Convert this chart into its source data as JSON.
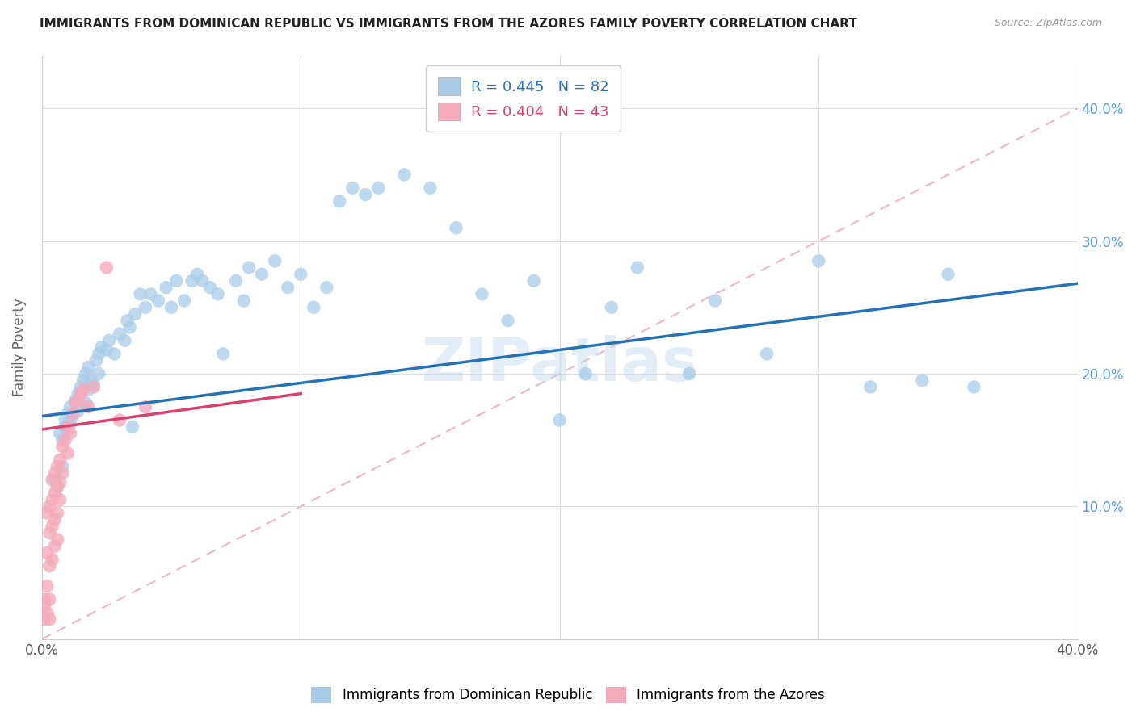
{
  "title": "IMMIGRANTS FROM DOMINICAN REPUBLIC VS IMMIGRANTS FROM THE AZORES FAMILY POVERTY CORRELATION CHART",
  "source": "Source: ZipAtlas.com",
  "ylabel": "Family Poverty",
  "x_min": 0.0,
  "x_max": 0.4,
  "y_min": 0.0,
  "y_max": 0.44,
  "x_ticks": [
    0.0,
    0.1,
    0.2,
    0.3,
    0.4
  ],
  "x_tick_labels": [
    "0.0%",
    "",
    "",
    "",
    "40.0%"
  ],
  "y_ticks_right": [
    0.1,
    0.2,
    0.3,
    0.4
  ],
  "y_tick_labels_right": [
    "10.0%",
    "20.0%",
    "30.0%",
    "40.0%"
  ],
  "legend_r1": "R = 0.445",
  "legend_n1": "N = 82",
  "legend_r2": "R = 0.404",
  "legend_n2": "N = 43",
  "blue_color": "#a8cce8",
  "blue_line_color": "#2472b5",
  "pink_color": "#f4aabb",
  "pink_line_color": "#d94070",
  "diagonal_color": "#e8b8c8",
  "watermark": "ZIPatlas",
  "blue_line_x0": 0.0,
  "blue_line_y0": 0.168,
  "blue_line_x1": 0.4,
  "blue_line_y1": 0.268,
  "pink_line_x0": 0.0,
  "pink_line_y0": 0.158,
  "pink_line_x1": 0.1,
  "pink_line_y1": 0.185,
  "scatter_blue_x": [
    0.005,
    0.006,
    0.007,
    0.008,
    0.008,
    0.009,
    0.009,
    0.01,
    0.01,
    0.011,
    0.011,
    0.012,
    0.013,
    0.014,
    0.014,
    0.015,
    0.015,
    0.016,
    0.017,
    0.017,
    0.018,
    0.018,
    0.019,
    0.02,
    0.021,
    0.022,
    0.022,
    0.023,
    0.025,
    0.026,
    0.028,
    0.03,
    0.032,
    0.033,
    0.034,
    0.035,
    0.036,
    0.038,
    0.04,
    0.042,
    0.045,
    0.048,
    0.05,
    0.052,
    0.055,
    0.058,
    0.06,
    0.062,
    0.065,
    0.068,
    0.07,
    0.075,
    0.078,
    0.08,
    0.085,
    0.09,
    0.095,
    0.1,
    0.105,
    0.11,
    0.115,
    0.12,
    0.125,
    0.13,
    0.14,
    0.15,
    0.16,
    0.17,
    0.18,
    0.19,
    0.2,
    0.21,
    0.22,
    0.23,
    0.25,
    0.26,
    0.28,
    0.3,
    0.32,
    0.34,
    0.35,
    0.36
  ],
  "scatter_blue_y": [
    0.12,
    0.115,
    0.155,
    0.15,
    0.13,
    0.16,
    0.165,
    0.158,
    0.17,
    0.162,
    0.175,
    0.168,
    0.18,
    0.172,
    0.185,
    0.19,
    0.175,
    0.195,
    0.178,
    0.2,
    0.188,
    0.205,
    0.195,
    0.192,
    0.21,
    0.215,
    0.2,
    0.22,
    0.218,
    0.225,
    0.215,
    0.23,
    0.225,
    0.24,
    0.235,
    0.16,
    0.245,
    0.26,
    0.25,
    0.26,
    0.255,
    0.265,
    0.25,
    0.27,
    0.255,
    0.27,
    0.275,
    0.27,
    0.265,
    0.26,
    0.215,
    0.27,
    0.255,
    0.28,
    0.275,
    0.285,
    0.265,
    0.275,
    0.25,
    0.265,
    0.33,
    0.34,
    0.335,
    0.34,
    0.35,
    0.34,
    0.31,
    0.26,
    0.24,
    0.27,
    0.165,
    0.2,
    0.25,
    0.28,
    0.2,
    0.255,
    0.215,
    0.285,
    0.19,
    0.195,
    0.275,
    0.19
  ],
  "scatter_pink_x": [
    0.001,
    0.001,
    0.001,
    0.002,
    0.002,
    0.002,
    0.002,
    0.003,
    0.003,
    0.003,
    0.003,
    0.003,
    0.004,
    0.004,
    0.004,
    0.004,
    0.005,
    0.005,
    0.005,
    0.005,
    0.006,
    0.006,
    0.006,
    0.006,
    0.007,
    0.007,
    0.007,
    0.008,
    0.008,
    0.009,
    0.01,
    0.01,
    0.011,
    0.012,
    0.013,
    0.014,
    0.015,
    0.016,
    0.018,
    0.02,
    0.025,
    0.03,
    0.04
  ],
  "scatter_pink_y": [
    0.025,
    0.03,
    0.015,
    0.095,
    0.065,
    0.04,
    0.02,
    0.1,
    0.08,
    0.055,
    0.03,
    0.015,
    0.12,
    0.105,
    0.085,
    0.06,
    0.125,
    0.11,
    0.09,
    0.07,
    0.13,
    0.115,
    0.095,
    0.075,
    0.135,
    0.118,
    0.105,
    0.145,
    0.125,
    0.15,
    0.16,
    0.14,
    0.155,
    0.17,
    0.178,
    0.18,
    0.185,
    0.188,
    0.175,
    0.19,
    0.28,
    0.165,
    0.175
  ]
}
